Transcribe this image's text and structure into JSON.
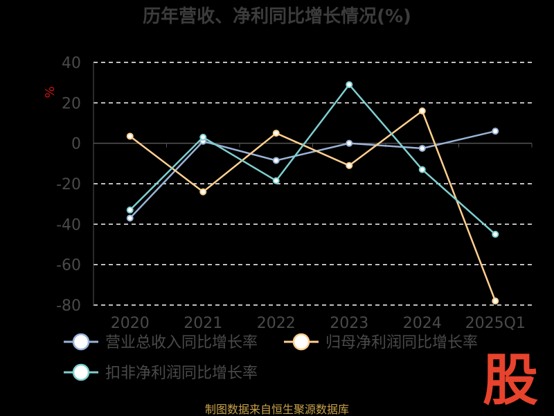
{
  "chart_data": {
    "type": "line",
    "title": "历年营收、净利同比增长情况(%)",
    "ylabel": "%",
    "xlabel": "",
    "categories": [
      "2020",
      "2021",
      "2022",
      "2023",
      "2024",
      "2025Q1"
    ],
    "ylim": [
      -80,
      40
    ],
    "yticks": [
      40,
      20,
      0,
      -20,
      -40,
      -60,
      -80
    ],
    "grid": true,
    "legend_position": "bottom",
    "series": [
      {
        "name": "营业总收入同比增长率",
        "color": "#9ab3d8",
        "values": [
          -37,
          1,
          -8.5,
          0,
          -2.5,
          6
        ]
      },
      {
        "name": "归母净利润同比增长率",
        "color": "#ffd08f",
        "values": [
          3.5,
          -24,
          5,
          -11,
          16,
          -78
        ]
      },
      {
        "name": "扣非净利润同比增长率",
        "color": "#7fcfcf",
        "values": [
          -33,
          3,
          -18.5,
          29,
          -13,
          -45
        ]
      }
    ]
  },
  "source": "制图数据来自恒生聚源数据库",
  "watermark": "股"
}
